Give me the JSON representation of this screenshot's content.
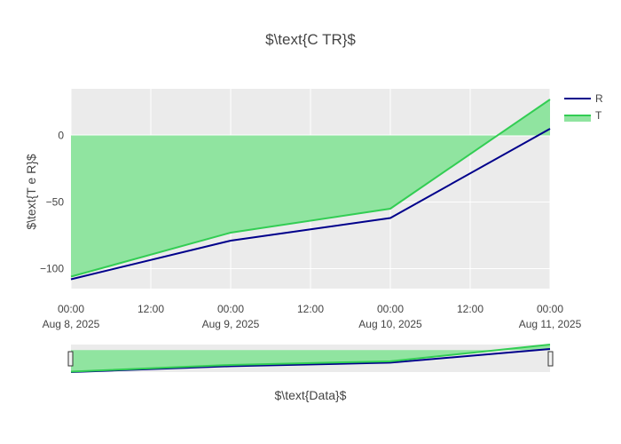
{
  "chart_data": {
    "type": "line",
    "title": "$\\text{C TR}$",
    "xlabel": "$\\text{Data}$",
    "ylabel": "$\\text{T e  R}$",
    "x": [
      "2025-08-08 00:00",
      "2025-08-09 00:00",
      "2025-08-10 00:00",
      "2025-08-11 00:00"
    ],
    "xlim": [
      "2025-08-08 00:00",
      "2025-08-11 00:00"
    ],
    "ylim": [
      -115,
      35
    ],
    "x_tick_labels": [
      {
        "time": "00:00",
        "date": "Aug 8, 2025"
      },
      {
        "time": "12:00",
        "date": ""
      },
      {
        "time": "00:00",
        "date": "Aug 9, 2025"
      },
      {
        "time": "12:00",
        "date": ""
      },
      {
        "time": "00:00",
        "date": "Aug 10, 2025"
      },
      {
        "time": "12:00",
        "date": ""
      },
      {
        "time": "00:00",
        "date": "Aug 11, 2025"
      }
    ],
    "y_ticks": [
      0,
      -50,
      -100
    ],
    "y_tick_labels": [
      "0",
      "−50",
      "−100"
    ],
    "series": [
      {
        "name": "R",
        "values": [
          -108,
          -79,
          -62,
          5
        ],
        "mode": "line",
        "color": "#00008b"
      },
      {
        "name": "T",
        "values": [
          -106,
          -73,
          -55,
          27
        ],
        "mode": "line",
        "fill": "tozeroy",
        "color": "#32cd53",
        "fill_color": "#90e4a0"
      }
    ],
    "grid": true,
    "legend": "right",
    "rangeslider": true,
    "plot_bg": "#ebebeb"
  }
}
